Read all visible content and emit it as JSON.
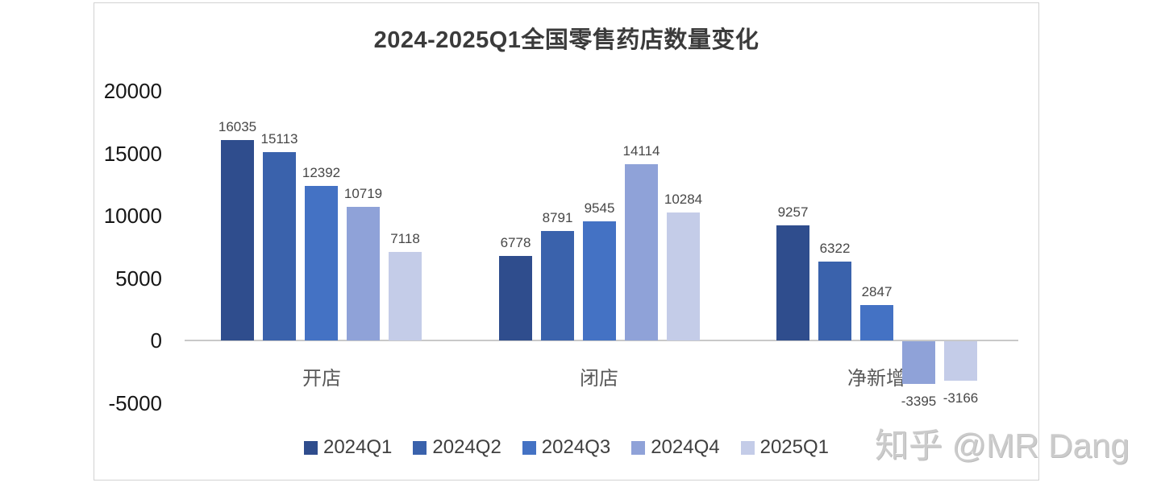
{
  "watermark": {
    "text": "知乎 @MR Dang"
  },
  "chart_data": {
    "type": "bar",
    "title": "2024-2025Q1全国零售药店数量变化",
    "categories": [
      "开店",
      "闭店",
      "净新增"
    ],
    "series": [
      {
        "name": "2024Q1",
        "color": "#2F4D8D",
        "values": [
          16035,
          6778,
          9257
        ]
      },
      {
        "name": "2024Q2",
        "color": "#3A62AC",
        "values": [
          15113,
          8791,
          6322
        ]
      },
      {
        "name": "2024Q3",
        "color": "#4472C4",
        "values": [
          12392,
          9545,
          2847
        ]
      },
      {
        "name": "2024Q4",
        "color": "#8FA2D8",
        "values": [
          10719,
          14114,
          -3395
        ]
      },
      {
        "name": "2025Q1",
        "color": "#C4CCE8",
        "values": [
          7118,
          10284,
          -3166
        ]
      }
    ],
    "xlabel": "",
    "ylabel": "",
    "ylim": [
      -5000,
      20000
    ],
    "yticks": [
      20000,
      15000,
      10000,
      5000,
      0,
      -5000
    ],
    "grid": false,
    "legend_position": "bottom",
    "axis_color": "#c9c9c9"
  }
}
